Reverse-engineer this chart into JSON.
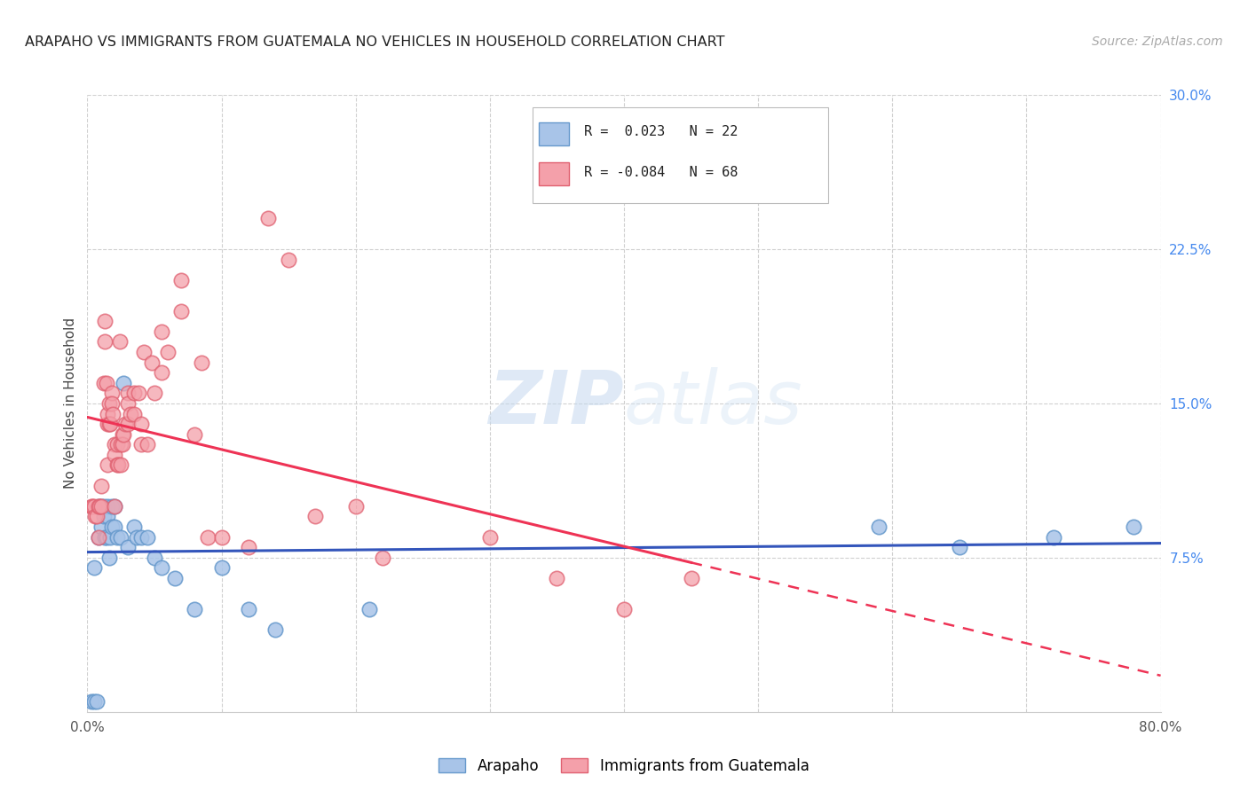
{
  "title": "ARAPAHO VS IMMIGRANTS FROM GUATEMALA NO VEHICLES IN HOUSEHOLD CORRELATION CHART",
  "source": "Source: ZipAtlas.com",
  "ylabel": "No Vehicles in Household",
  "xlim": [
    0.0,
    0.8
  ],
  "ylim": [
    0.0,
    0.3
  ],
  "xtick_positions": [
    0.0,
    0.1,
    0.2,
    0.3,
    0.4,
    0.5,
    0.6,
    0.7,
    0.8
  ],
  "yticks_right": [
    0.075,
    0.15,
    0.225,
    0.3
  ],
  "ytick_labels_right": [
    "7.5%",
    "15.0%",
    "22.5%",
    "30.0%"
  ],
  "blue_color": "#a8c4e8",
  "blue_edge_color": "#6699cc",
  "pink_color": "#f4a0aa",
  "pink_edge_color": "#e06070",
  "blue_line_color": "#3355bb",
  "pink_line_color": "#ee3355",
  "watermark_zip": "ZIP",
  "watermark_atlas": "atlas",
  "blue_scatter_x": [
    0.003,
    0.005,
    0.005,
    0.007,
    0.008,
    0.008,
    0.01,
    0.01,
    0.012,
    0.012,
    0.013,
    0.014,
    0.015,
    0.015,
    0.016,
    0.017,
    0.018,
    0.018,
    0.02,
    0.02,
    0.022,
    0.025,
    0.027,
    0.03,
    0.035,
    0.037,
    0.04,
    0.045,
    0.05,
    0.055,
    0.065,
    0.08,
    0.1,
    0.12,
    0.14,
    0.21,
    0.59,
    0.65,
    0.72,
    0.78
  ],
  "blue_scatter_y": [
    0.005,
    0.005,
    0.07,
    0.005,
    0.1,
    0.085,
    0.1,
    0.09,
    0.1,
    0.095,
    0.085,
    0.085,
    0.1,
    0.095,
    0.075,
    0.085,
    0.09,
    0.1,
    0.09,
    0.1,
    0.085,
    0.085,
    0.16,
    0.08,
    0.09,
    0.085,
    0.085,
    0.085,
    0.075,
    0.07,
    0.065,
    0.05,
    0.07,
    0.05,
    0.04,
    0.05,
    0.09,
    0.08,
    0.085,
    0.09
  ],
  "pink_scatter_x": [
    0.003,
    0.004,
    0.005,
    0.006,
    0.007,
    0.008,
    0.008,
    0.009,
    0.01,
    0.01,
    0.012,
    0.013,
    0.013,
    0.014,
    0.015,
    0.015,
    0.015,
    0.016,
    0.016,
    0.017,
    0.018,
    0.018,
    0.019,
    0.02,
    0.02,
    0.02,
    0.022,
    0.022,
    0.023,
    0.024,
    0.025,
    0.025,
    0.026,
    0.026,
    0.027,
    0.028,
    0.03,
    0.03,
    0.03,
    0.032,
    0.035,
    0.035,
    0.038,
    0.04,
    0.04,
    0.042,
    0.045,
    0.048,
    0.05,
    0.055,
    0.055,
    0.06,
    0.07,
    0.07,
    0.08,
    0.085,
    0.09,
    0.1,
    0.12,
    0.135,
    0.15,
    0.17,
    0.2,
    0.22,
    0.3,
    0.35,
    0.4,
    0.45
  ],
  "pink_scatter_y": [
    0.1,
    0.1,
    0.1,
    0.095,
    0.095,
    0.1,
    0.085,
    0.1,
    0.11,
    0.1,
    0.16,
    0.18,
    0.19,
    0.16,
    0.14,
    0.145,
    0.12,
    0.15,
    0.14,
    0.14,
    0.155,
    0.15,
    0.145,
    0.13,
    0.125,
    0.1,
    0.13,
    0.12,
    0.12,
    0.18,
    0.13,
    0.12,
    0.135,
    0.13,
    0.135,
    0.14,
    0.155,
    0.15,
    0.14,
    0.145,
    0.155,
    0.145,
    0.155,
    0.14,
    0.13,
    0.175,
    0.13,
    0.17,
    0.155,
    0.165,
    0.185,
    0.175,
    0.21,
    0.195,
    0.135,
    0.17,
    0.085,
    0.085,
    0.08,
    0.24,
    0.22,
    0.095,
    0.1,
    0.075,
    0.085,
    0.065,
    0.05,
    0.065
  ]
}
